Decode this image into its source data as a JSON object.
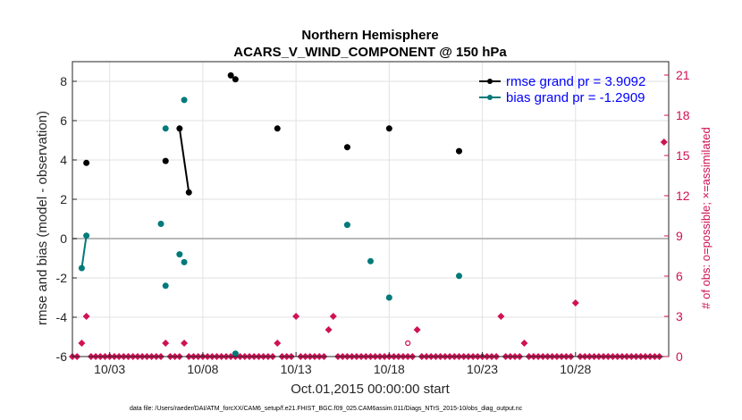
{
  "colors": {
    "rmse": "#000000",
    "bias": "#007a7a",
    "obs": "#d01155",
    "grid": "#e2e2e2",
    "zero_line": "#b9b9b9",
    "legend_text": "#0000ff"
  },
  "chart_data": {
    "type": "line",
    "title": "Northern Hemisphere",
    "subtitle": "ACARS_V_WIND_COMPONENT @ 150 hPa",
    "xlabel": "Oct.01,2015 00:00:00 start",
    "ylabel": "rmse and bias (model - observation)",
    "y2label": "# of obs: o=possible; ×=assimilated",
    "xlim": [
      0,
      32
    ],
    "ylim": [
      -6,
      9
    ],
    "y2lim": [
      0,
      22
    ],
    "x_ticks": [
      2,
      7,
      12,
      17,
      22,
      27
    ],
    "x_tick_labels": [
      "10/03",
      "10/08",
      "10/13",
      "10/18",
      "10/23",
      "10/28"
    ],
    "y_ticks": [
      -6,
      -4,
      -2,
      0,
      2,
      4,
      6,
      8
    ],
    "y_tick_labels": [
      "-6",
      "-4",
      "-2",
      "0",
      "2",
      "4",
      "6",
      "8"
    ],
    "y2_ticks": [
      0,
      3,
      6,
      9,
      12,
      15,
      18,
      21
    ],
    "y2_tick_labels": [
      "0",
      "3",
      "6",
      "9",
      "12",
      "15",
      "18",
      "21"
    ],
    "grid": true,
    "legend_position": "top-right",
    "zero_line": 0,
    "series": [
      {
        "name": "rmse grand pr = 3.9092",
        "axis": "left",
        "segments": [
          [
            [
              0.75,
              3.85
            ]
          ],
          [
            [
              5.75,
              5.6
            ],
            [
              6.25,
              2.35
            ]
          ],
          [
            [
              5.0,
              3.95
            ]
          ],
          [
            [
              11.0,
              5.6
            ]
          ],
          [
            [
              14.75,
              4.65
            ]
          ],
          [
            [
              17.0,
              5.6
            ]
          ],
          [
            [
              8.5,
              8.3
            ],
            [
              8.75,
              8.1
            ]
          ],
          [
            [
              20.75,
              4.45
            ]
          ]
        ]
      },
      {
        "name": "bias grand pr = -1.2909",
        "axis": "left",
        "segments": [
          [
            [
              0.5,
              -1.5
            ],
            [
              0.75,
              0.15
            ]
          ],
          [
            [
              5.0,
              5.6
            ]
          ],
          [
            [
              6.0,
              7.05
            ]
          ],
          [
            [
              4.75,
              0.75
            ]
          ],
          [
            [
              5.0,
              -2.4
            ]
          ],
          [
            [
              5.75,
              -0.8
            ]
          ],
          [
            [
              6.0,
              -1.2
            ]
          ],
          [
            [
              8.75,
              -5.85
            ]
          ],
          [
            [
              14.75,
              0.7
            ]
          ],
          [
            [
              16.0,
              -1.15
            ]
          ],
          [
            [
              17.0,
              -3.0
            ]
          ],
          [
            [
              20.75,
              -1.9
            ]
          ]
        ]
      }
    ],
    "obs_counts": {
      "name": "# of obs",
      "axis": "right",
      "x_step": 0.25,
      "x_start": 0.0,
      "x_end": 31.75,
      "nonzero": [
        {
          "x": 0.5,
          "n": 1
        },
        {
          "x": 0.75,
          "n": 3
        },
        {
          "x": 5.0,
          "n": 1
        },
        {
          "x": 6.0,
          "n": 1
        },
        {
          "x": 11.0,
          "n": 1
        },
        {
          "x": 12.0,
          "n": 3
        },
        {
          "x": 13.75,
          "n": 2
        },
        {
          "x": 14.0,
          "n": 3
        },
        {
          "x": 18.5,
          "n": 2
        },
        {
          "x": 23.0,
          "n": 3
        },
        {
          "x": 24.25,
          "n": 1
        },
        {
          "x": 27.0,
          "n": 4
        },
        {
          "x": 31.75,
          "n": 16
        }
      ],
      "possible_only": [
        {
          "x": 18.0,
          "n": 1
        }
      ]
    },
    "footnote": "data file: /Users/raeder/DAI/ATM_forcXX/CAM6_setup/f.e21.FHIST_BGC.f09_025.CAM6assim.011/Diags_NTrS_2015-10/obs_diag_output.nc"
  }
}
